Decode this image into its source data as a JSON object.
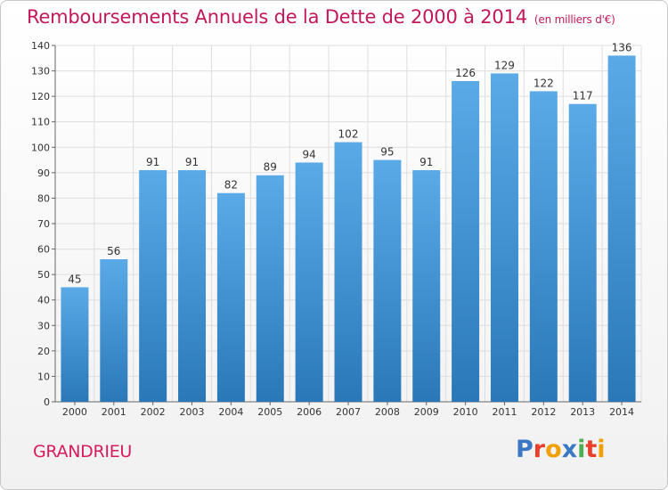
{
  "chart_data": {
    "type": "bar",
    "title": "Remboursements Annuels de la Dette de 2000 à 2014",
    "subtitle": "(en milliers d'€)",
    "categories": [
      "2000",
      "2001",
      "2002",
      "2003",
      "2004",
      "2005",
      "2006",
      "2007",
      "2008",
      "2009",
      "2010",
      "2011",
      "2012",
      "2013",
      "2014"
    ],
    "values": [
      45,
      56,
      91,
      91,
      82,
      89,
      94,
      102,
      95,
      91,
      126,
      129,
      122,
      117,
      136
    ],
    "ylim": [
      0,
      140
    ],
    "yticks": [
      0,
      10,
      20,
      30,
      40,
      50,
      60,
      70,
      80,
      90,
      100,
      110,
      120,
      130,
      140
    ],
    "xlabel": "",
    "ylabel": "",
    "grid": true
  },
  "footer": {
    "place": "GRANDRIEU",
    "logo_letters": [
      "P",
      "r",
      "o",
      "x",
      "i",
      "t",
      "i"
    ],
    "logo_colors": [
      "#3b78c4",
      "#e8402d",
      "#f0a000",
      "#3b78c4",
      "#4caf50",
      "#e8402d",
      "#f0a000"
    ]
  },
  "colors": {
    "bar_top": "#5aaae8",
    "bar_bottom": "#2a78b8",
    "title": "#c2185b"
  }
}
